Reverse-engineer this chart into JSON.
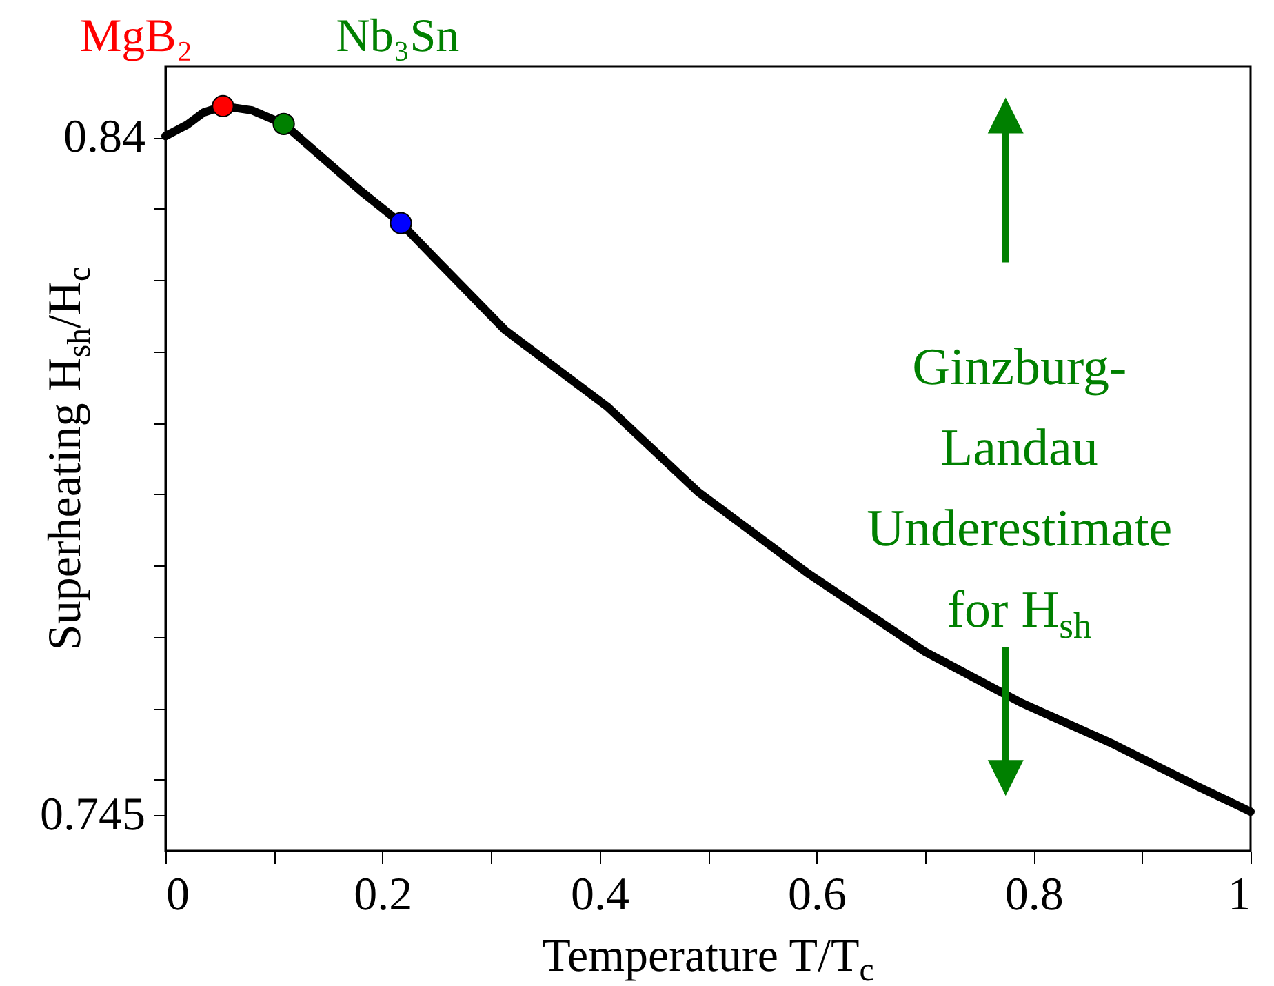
{
  "chart_data": {
    "type": "line",
    "xlabel": "Temperature T/T$_{c}$",
    "ylabel": "Superheating H$_{sh}$/H$_{c}$",
    "xlim": [
      0,
      1
    ],
    "ylim": [
      0.74,
      0.85
    ],
    "xticks": [
      0,
      {
        "value": 0.1,
        "label": null
      },
      0.2,
      {
        "value": 0.3,
        "label": null
      },
      0.4,
      {
        "value": 0.5,
        "label": null
      },
      0.6,
      {
        "value": 0.7,
        "label": null
      },
      0.8,
      {
        "value": 0.9,
        "label": null
      },
      1
    ],
    "yticks": [
      0.745,
      {
        "value": 0.75,
        "label": null
      },
      {
        "value": 0.76,
        "label": null
      },
      {
        "value": 0.77,
        "label": null
      },
      {
        "value": 0.78,
        "label": null
      },
      {
        "value": 0.79,
        "label": null
      },
      {
        "value": 0.8,
        "label": null
      },
      {
        "value": 0.81,
        "label": null
      },
      {
        "value": 0.82,
        "label": null
      },
      {
        "value": 0.83,
        "label": null
      },
      0.84
    ],
    "annotations": [
      "Ginzburg-Landau Underestimate for H$_{sh}$"
    ],
    "series": [
      {
        "color": "#000000",
        "x": [
          0,
          0.02,
          0.035,
          0.053,
          0.08,
          0.109,
          0.146,
          0.18,
          0.217,
          0.25,
          0.313,
          0.407,
          0.491,
          0.593,
          0.699,
          0.788,
          0.873,
          0.949,
          1.0
        ],
        "values": [
          0.8402,
          0.8418,
          0.8435,
          0.8444,
          0.8438,
          0.8419,
          0.837,
          0.8325,
          0.828,
          0.8228,
          0.813,
          0.8023,
          0.7903,
          0.7788,
          0.768,
          0.7608,
          0.755,
          0.7492,
          0.7455
        ]
      },
      {
        "type": "scatter",
        "name": "MgB₂",
        "color": "#ff0000",
        "x": [
          0.053
        ],
        "values": [
          0.8444
        ]
      },
      {
        "type": "scatter",
        "name": "Nb₃Sn",
        "color": "#008000",
        "x": [
          0.109
        ],
        "values": [
          0.8419
        ]
      },
      {
        "type": "scatter",
        "color": "#0000ff",
        "x": [
          0.217
        ],
        "values": [
          0.828
        ]
      }
    ]
  }
}
